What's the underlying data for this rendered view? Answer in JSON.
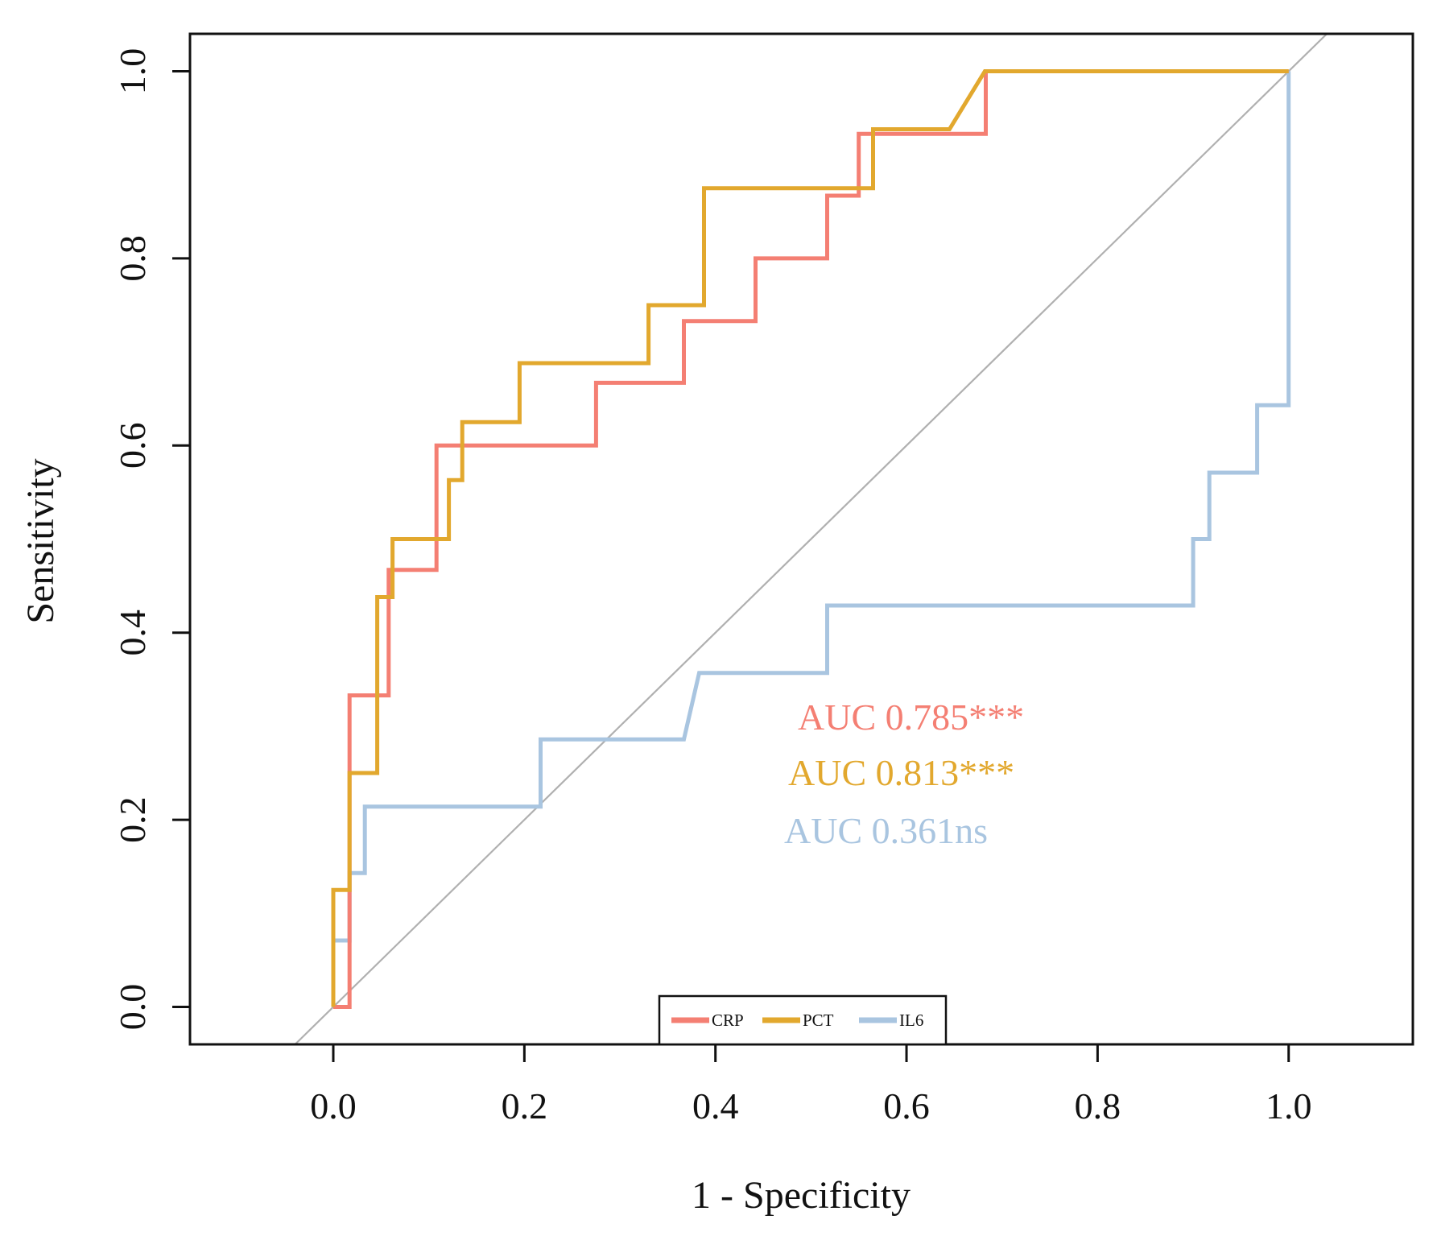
{
  "chart_data": {
    "type": "line",
    "title": "",
    "xlabel": "1 - Specificity",
    "ylabel": "Sensitivity",
    "xlim": [
      -0.15,
      1.13
    ],
    "ylim": [
      -0.04,
      1.04
    ],
    "xticks": [
      0.0,
      0.2,
      0.4,
      0.6,
      0.8,
      1.0
    ],
    "yticks": [
      0.0,
      0.2,
      0.4,
      0.6,
      0.8,
      1.0
    ],
    "xtick_labels": [
      "0.0",
      "0.2",
      "0.4",
      "0.6",
      "0.8",
      "1.0"
    ],
    "ytick_labels": [
      "0.0",
      "0.2",
      "0.4",
      "0.6",
      "0.8",
      "1.0"
    ],
    "grid": false,
    "reference_line": {
      "slope": 1,
      "intercept": 0,
      "color": "#b0b0b0"
    },
    "series": [
      {
        "name": "CRP",
        "color": "#f47f73",
        "auc_label": "AUC 0.785***",
        "x": [
          0.0,
          0.017,
          0.017,
          0.017,
          0.058,
          0.058,
          0.108,
          0.108,
          0.275,
          0.275,
          0.367,
          0.367,
          0.442,
          0.442,
          0.517,
          0.517,
          0.55,
          0.55,
          0.683,
          0.683,
          1.0
        ],
        "y": [
          0.0,
          0.0,
          0.133,
          0.333,
          0.333,
          0.467,
          0.467,
          0.6,
          0.6,
          0.667,
          0.667,
          0.733,
          0.733,
          0.8,
          0.8,
          0.867,
          0.867,
          0.933,
          0.933,
          1.0,
          1.0
        ]
      },
      {
        "name": "PCT",
        "color": "#e2a82e",
        "auc_label": "AUC 0.813***",
        "x": [
          0.0,
          0.0,
          0.017,
          0.017,
          0.046,
          0.046,
          0.062,
          0.062,
          0.121,
          0.121,
          0.135,
          0.135,
          0.195,
          0.195,
          0.33,
          0.33,
          0.388,
          0.388,
          0.565,
          0.565,
          0.645,
          0.682,
          1.0
        ],
        "y": [
          0.0,
          0.125,
          0.125,
          0.25,
          0.25,
          0.438,
          0.438,
          0.5,
          0.5,
          0.563,
          0.563,
          0.625,
          0.625,
          0.688,
          0.688,
          0.75,
          0.75,
          0.875,
          0.875,
          0.938,
          0.938,
          1.0,
          1.0
        ]
      },
      {
        "name": "IL6",
        "color": "#a9c5e0",
        "auc_label": "AUC 0.361ns",
        "x": [
          0.0,
          0.017,
          0.017,
          0.033,
          0.033,
          0.217,
          0.217,
          0.367,
          0.383,
          0.517,
          0.517,
          0.9,
          0.9,
          0.917,
          0.917,
          0.967,
          0.967,
          1.0,
          1.0
        ],
        "y": [
          0.071,
          0.071,
          0.143,
          0.143,
          0.214,
          0.214,
          0.286,
          0.286,
          0.357,
          0.357,
          0.429,
          0.429,
          0.5,
          0.5,
          0.571,
          0.571,
          0.643,
          0.643,
          1.0
        ]
      }
    ],
    "legend": {
      "placement": "bottom-center",
      "entries": [
        "CRP",
        "PCT",
        "IL6"
      ]
    }
  }
}
